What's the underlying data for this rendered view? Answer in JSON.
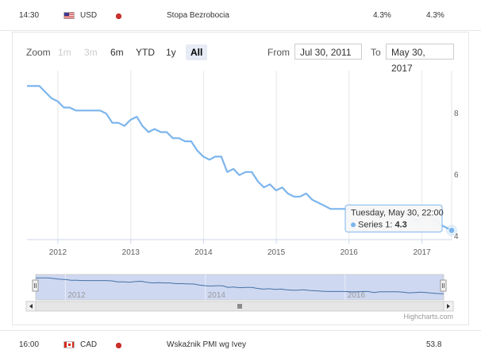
{
  "rows": {
    "top": {
      "time": "14:30",
      "currency": "USD",
      "flag_icon": "us-flag-icon",
      "event": "Stopa Bezrobocia",
      "actual": "4.3%",
      "forecast": "4.3%"
    },
    "bottom": {
      "time": "16:00",
      "currency": "CAD",
      "flag_icon": "ca-flag-icon",
      "event": "Wskaźnik PMI wg Ivey",
      "actual": "",
      "forecast": "53.8"
    },
    "importance_color": "#c9302c"
  },
  "range_selector": {
    "zoom_label": "Zoom",
    "buttons": [
      {
        "label": "1m",
        "state": "disabled"
      },
      {
        "label": "3m",
        "state": "disabled"
      },
      {
        "label": "6m",
        "state": "normal"
      },
      {
        "label": "YTD",
        "state": "normal"
      },
      {
        "label": "1y",
        "state": "normal"
      },
      {
        "label": "All",
        "state": "active"
      }
    ],
    "from_label": "From",
    "from_value": "Jul 30, 2011",
    "to_label": "To",
    "to_value": "May 30, 2017"
  },
  "chart_data": {
    "type": "line",
    "series": [
      {
        "name": "Series 1",
        "color": "#7cb5ec",
        "points": [
          [
            "2011-07-30",
            9.0
          ],
          [
            "2011-09-30",
            9.0
          ],
          [
            "2011-10-31",
            8.8
          ],
          [
            "2011-11-30",
            8.6
          ],
          [
            "2011-12-31",
            8.5
          ],
          [
            "2012-01-31",
            8.3
          ],
          [
            "2012-02-29",
            8.3
          ],
          [
            "2012-03-31",
            8.2
          ],
          [
            "2012-05-31",
            8.2
          ],
          [
            "2012-07-31",
            8.2
          ],
          [
            "2012-08-31",
            8.1
          ],
          [
            "2012-09-30",
            7.8
          ],
          [
            "2012-10-31",
            7.8
          ],
          [
            "2012-11-30",
            7.7
          ],
          [
            "2012-12-31",
            7.9
          ],
          [
            "2013-01-31",
            8.0
          ],
          [
            "2013-02-28",
            7.7
          ],
          [
            "2013-03-31",
            7.5
          ],
          [
            "2013-04-30",
            7.6
          ],
          [
            "2013-05-31",
            7.5
          ],
          [
            "2013-06-30",
            7.5
          ],
          [
            "2013-07-31",
            7.3
          ],
          [
            "2013-08-31",
            7.3
          ],
          [
            "2013-09-30",
            7.2
          ],
          [
            "2013-10-31",
            7.2
          ],
          [
            "2013-11-30",
            6.9
          ],
          [
            "2013-12-31",
            6.7
          ],
          [
            "2014-01-31",
            6.6
          ],
          [
            "2014-02-28",
            6.7
          ],
          [
            "2014-03-31",
            6.7
          ],
          [
            "2014-04-30",
            6.2
          ],
          [
            "2014-05-31",
            6.3
          ],
          [
            "2014-06-30",
            6.1
          ],
          [
            "2014-07-31",
            6.2
          ],
          [
            "2014-08-31",
            6.2
          ],
          [
            "2014-09-30",
            5.9
          ],
          [
            "2014-10-31",
            5.7
          ],
          [
            "2014-11-30",
            5.8
          ],
          [
            "2014-12-31",
            5.6
          ],
          [
            "2015-01-31",
            5.7
          ],
          [
            "2015-02-28",
            5.5
          ],
          [
            "2015-03-31",
            5.4
          ],
          [
            "2015-04-30",
            5.4
          ],
          [
            "2015-05-31",
            5.5
          ],
          [
            "2015-06-30",
            5.3
          ],
          [
            "2015-07-31",
            5.2
          ],
          [
            "2015-08-31",
            5.1
          ],
          [
            "2015-09-30",
            5.0
          ],
          [
            "2015-10-31",
            5.0
          ],
          [
            "2015-11-30",
            5.0
          ],
          [
            "2015-12-31",
            5.0
          ],
          [
            "2016-01-31",
            4.9
          ],
          [
            "2016-02-29",
            4.9
          ],
          [
            "2016-03-31",
            5.0
          ],
          [
            "2016-04-30",
            5.0
          ],
          [
            "2016-05-31",
            4.7
          ],
          [
            "2016-06-30",
            4.9
          ],
          [
            "2016-07-31",
            4.9
          ],
          [
            "2016-08-31",
            4.9
          ],
          [
            "2016-09-30",
            4.9
          ],
          [
            "2016-10-31",
            4.8
          ],
          [
            "2016-11-30",
            4.6
          ],
          [
            "2016-12-31",
            4.7
          ],
          [
            "2017-01-31",
            4.8
          ],
          [
            "2017-02-28",
            4.7
          ],
          [
            "2017-03-31",
            4.5
          ],
          [
            "2017-04-30",
            4.4
          ],
          [
            "2017-05-30",
            4.3
          ]
        ]
      }
    ],
    "x_range": [
      "2011-07-30",
      "2017-05-30"
    ],
    "x_ticks": [
      "2012",
      "2013",
      "2014",
      "2015",
      "2016",
      "2017"
    ],
    "navigator_ticks": [
      "2012",
      "2014",
      "2016"
    ],
    "y_range": [
      4,
      9.5
    ],
    "y_ticks": [
      4,
      6,
      8
    ],
    "y_axis_side": "right",
    "grid": true,
    "grid_direction": "vertical",
    "tooltip": {
      "header": "Tuesday, May 30, 22:00",
      "series_label": "Series 1:",
      "value": "4.3",
      "border_color": "#7cb5ec"
    },
    "credits": "Highcharts.com"
  }
}
